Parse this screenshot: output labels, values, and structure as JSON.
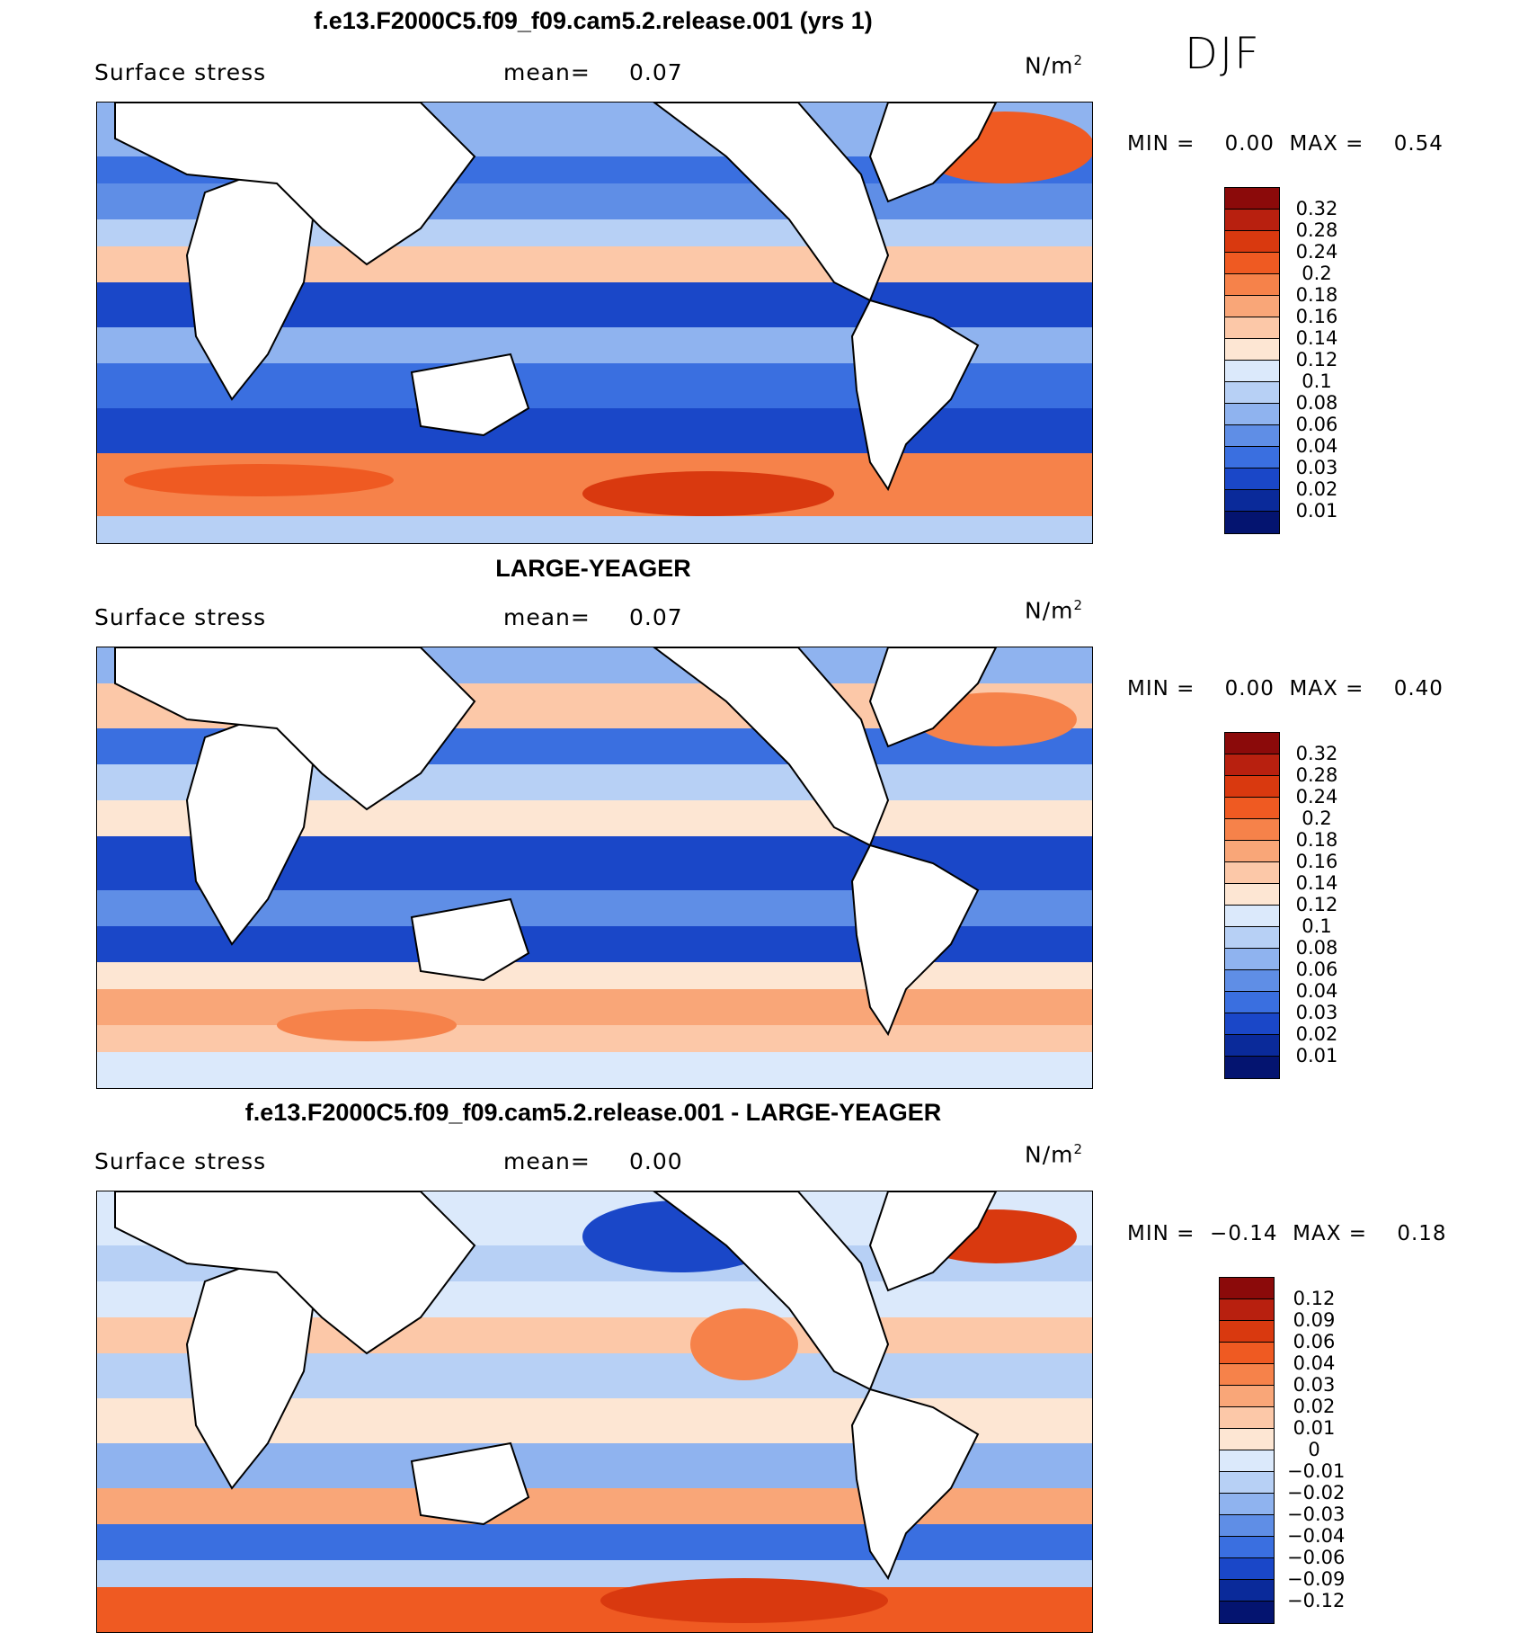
{
  "season": "DJF",
  "panels": [
    {
      "title": "f.e13.F2000C5.f09_f09.cam5.2.release.001 (yrs 1)",
      "variable": "Surface stress",
      "mean_label": "mean=",
      "mean_value": "0.07",
      "unit": "N/m",
      "unit_exp": "2",
      "min_label": "MIN =",
      "min_value": "0.00",
      "max_label": "MAX =",
      "max_value": "0.54",
      "colorbar_labels": [
        "0.32",
        "0.28",
        "0.24",
        "0.2",
        "0.18",
        "0.16",
        "0.14",
        "0.12",
        "0.1",
        "0.08",
        "0.06",
        "0.04",
        "0.03",
        "0.02",
        "0.01"
      ],
      "colorbar_colors": [
        "#8b0a0a",
        "#b8200f",
        "#d9390f",
        "#ef5a22",
        "#f6824a",
        "#f9a678",
        "#fcc8a8",
        "#fde6d3",
        "#dbe9fb",
        "#b7d0f5",
        "#8fb3ef",
        "#5f8ee6",
        "#3a6fe0",
        "#1a47c8",
        "#0a2a9a",
        "#041470"
      ]
    },
    {
      "title": "LARGE-YEAGER",
      "variable": "Surface stress",
      "mean_label": "mean=",
      "mean_value": "0.07",
      "unit": "N/m",
      "unit_exp": "2",
      "min_label": "MIN =",
      "min_value": "0.00",
      "max_label": "MAX =",
      "max_value": "0.40",
      "colorbar_labels": [
        "0.32",
        "0.28",
        "0.24",
        "0.2",
        "0.18",
        "0.16",
        "0.14",
        "0.12",
        "0.1",
        "0.08",
        "0.06",
        "0.04",
        "0.03",
        "0.02",
        "0.01"
      ],
      "colorbar_colors": [
        "#8b0a0a",
        "#b8200f",
        "#d9390f",
        "#ef5a22",
        "#f6824a",
        "#f9a678",
        "#fcc8a8",
        "#fde6d3",
        "#dbe9fb",
        "#b7d0f5",
        "#8fb3ef",
        "#5f8ee6",
        "#3a6fe0",
        "#1a47c8",
        "#0a2a9a",
        "#041470"
      ]
    },
    {
      "title": "f.e13.F2000C5.f09_f09.cam5.2.release.001 - LARGE-YEAGER",
      "variable": "Surface stress",
      "mean_label": "mean=",
      "mean_value": "0.00",
      "unit": "N/m",
      "unit_exp": "2",
      "min_label": "MIN =",
      "min_value": "−0.14",
      "max_label": "MAX =",
      "max_value": "0.18",
      "colorbar_labels": [
        "0.12",
        "0.09",
        "0.06",
        "0.04",
        "0.03",
        "0.02",
        "0.01",
        "0",
        "−0.01",
        "−0.02",
        "−0.03",
        "−0.04",
        "−0.06",
        "−0.09",
        "−0.12"
      ],
      "colorbar_colors": [
        "#8b0a0a",
        "#b8200f",
        "#d9390f",
        "#ef5a22",
        "#f6824a",
        "#f9a678",
        "#fcc8a8",
        "#fde6d3",
        "#dbe9fb",
        "#b7d0f5",
        "#8fb3ef",
        "#5f8ee6",
        "#3a6fe0",
        "#1a47c8",
        "#0a2a9a",
        "#041470"
      ]
    }
  ]
}
